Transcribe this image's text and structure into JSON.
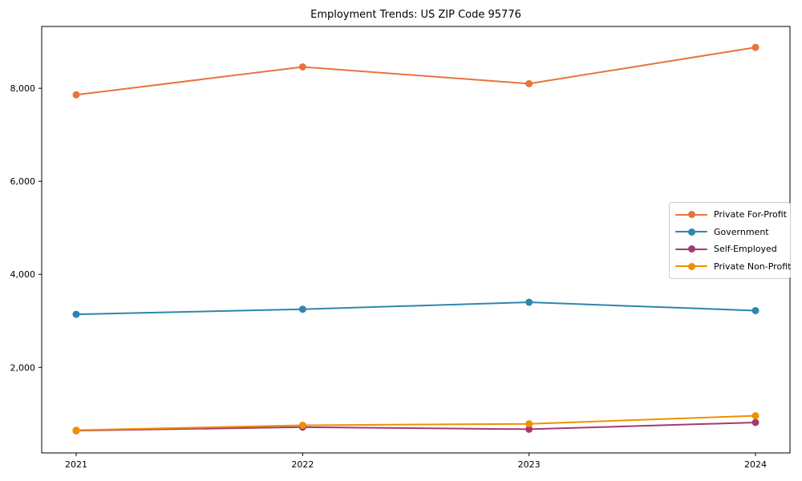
{
  "chart_data": {
    "type": "line",
    "title": "Employment Trends: US ZIP Code 95776",
    "xlabel": "",
    "ylabel": "",
    "x": [
      2021,
      2022,
      2023,
      2024
    ],
    "x_tick_labels": [
      "2021",
      "2022",
      "2023",
      "2024"
    ],
    "y_ticks": [
      2000,
      4000,
      6000,
      8000
    ],
    "y_tick_labels": [
      "2,000",
      "4,000",
      "6,000",
      "8,000"
    ],
    "ylim": [
      160,
      9330
    ],
    "grid": false,
    "legend_position": "center-right",
    "frame_color": "#000000",
    "series": [
      {
        "name": "Private For-Profit",
        "color": "#E8743B",
        "values": [
          7860,
          8460,
          8100,
          8880
        ]
      },
      {
        "name": "Government",
        "color": "#2E86AB",
        "values": [
          3140,
          3250,
          3400,
          3220
        ]
      },
      {
        "name": "Self-Employed",
        "color": "#A23B72",
        "values": [
          640,
          715,
          670,
          815
        ]
      },
      {
        "name": "Private Non-Profit",
        "color": "#F18F01",
        "values": [
          650,
          755,
          785,
          960
        ]
      }
    ]
  }
}
